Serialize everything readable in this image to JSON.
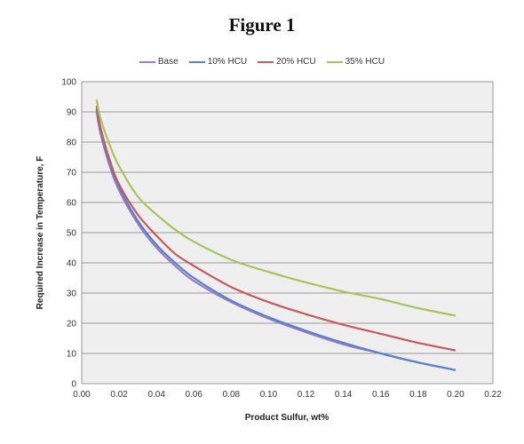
{
  "chart_data": {
    "type": "line",
    "title": "Figure 1",
    "xlabel": "Product Sulfur, wt%",
    "ylabel": "Required Increase in Temperature, F",
    "xlim": [
      0.0,
      0.22
    ],
    "ylim": [
      0,
      100
    ],
    "x_ticks": [
      "0.00",
      "0.02",
      "0.04",
      "0.06",
      "0.08",
      "0.10",
      "0.12",
      "0.14",
      "0.16",
      "0.18",
      "0.20",
      "0.22"
    ],
    "y_ticks": [
      "0",
      "10",
      "20",
      "30",
      "40",
      "50",
      "60",
      "70",
      "80",
      "90",
      "100"
    ],
    "grid": "horizontal",
    "legend_position": "top",
    "x": [
      0.008,
      0.01,
      0.015,
      0.02,
      0.03,
      0.04,
      0.05,
      0.06,
      0.08,
      0.1,
      0.12,
      0.14,
      0.16,
      0.18,
      0.2
    ],
    "series": [
      {
        "name": "Base",
        "color": "#9b7fc6",
        "values": [
          90,
          83,
          72,
          64,
          53,
          45,
          39,
          34,
          27,
          21.5,
          17,
          13,
          10,
          7,
          4.5
        ]
      },
      {
        "name": "10% HCU",
        "color": "#5b82c8",
        "values": [
          91,
          84,
          73,
          65,
          54,
          46,
          40,
          35,
          27.5,
          22,
          17.5,
          13.5,
          10,
          7,
          4.5
        ]
      },
      {
        "name": "20% HCU",
        "color": "#c75b5b",
        "values": [
          92,
          85,
          74,
          66,
          56,
          49,
          43,
          39,
          32,
          27,
          23,
          19.5,
          16.5,
          13.5,
          11
        ]
      },
      {
        "name": "35% HCU",
        "color": "#a6c55a",
        "values": [
          94,
          88,
          79,
          72,
          62,
          56,
          51,
          47,
          41,
          37,
          33.5,
          30.5,
          28,
          25,
          22.5
        ]
      }
    ]
  }
}
